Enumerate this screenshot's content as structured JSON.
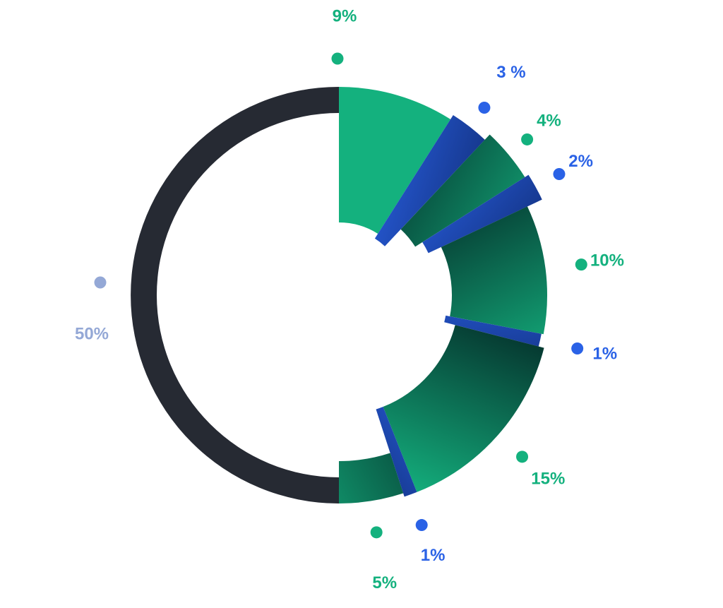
{
  "chart_data": {
    "type": "pie",
    "title": "",
    "total": 100,
    "slices": [
      {
        "label": "9%",
        "value": 9,
        "color": "green"
      },
      {
        "label": "3 %",
        "value": 3,
        "color": "blue"
      },
      {
        "label": "4%",
        "value": 4,
        "color": "green"
      },
      {
        "label": "2%",
        "value": 2,
        "color": "blue"
      },
      {
        "label": "10%",
        "value": 10,
        "color": "green"
      },
      {
        "label": "1%",
        "value": 1,
        "color": "blue"
      },
      {
        "label": "15%",
        "value": 15,
        "color": "green"
      },
      {
        "label": "1%",
        "value": 1,
        "color": "blue"
      },
      {
        "label": "5%",
        "value": 5,
        "color": "green"
      },
      {
        "label": "50%",
        "value": 50,
        "color": "slate"
      }
    ],
    "colors": {
      "green": "#14b17e",
      "green_dark": "#063b32",
      "blue": "#2a62e6",
      "blue_dark": "#0a1f5a",
      "slate_ring": "#262a33",
      "slate_label": "#94a8d6"
    }
  }
}
